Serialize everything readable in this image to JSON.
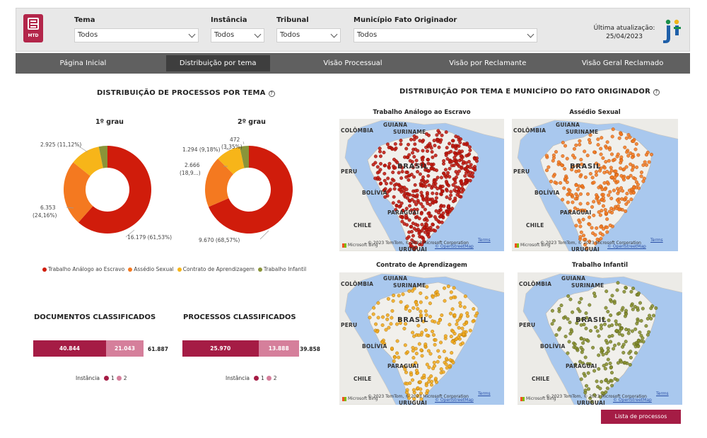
{
  "header": {
    "logo_text": "MTD",
    "filters": [
      {
        "label": "Tema",
        "value": "Todos"
      },
      {
        "label": "Instância",
        "value": "Todos"
      },
      {
        "label": "Tribunal",
        "value": "Todos"
      },
      {
        "label": "Município Fato Originador",
        "value": "Todos"
      }
    ],
    "update_label": "Última atualização:",
    "update_date": "25/04/2023"
  },
  "nav": {
    "tabs": [
      {
        "label": "Página Inicial",
        "active": false
      },
      {
        "label": "Distribuição por tema",
        "active": true
      },
      {
        "label": "Visão Processual",
        "active": false
      },
      {
        "label": "Visão por Reclamante",
        "active": false
      },
      {
        "label": "Visão Geral Reclamado",
        "active": false
      }
    ]
  },
  "left": {
    "title": "DISTRIBUIÇÃO DE PROCESSOS POR TEMA",
    "help_icon": "?",
    "donut1": {
      "title": "1º grau",
      "labels": [
        "16.179 (61,53%)",
        "6.353",
        "(24,16%)",
        "2.925 (11,12%)"
      ]
    },
    "donut2": {
      "title": "2º grau",
      "labels": [
        "9.670 (68,57%)",
        "2.666",
        "(18,9...)",
        "1.294 (9,18%)",
        "472",
        "(3,35%)"
      ]
    },
    "legend": [
      {
        "label": "Trabalho Análogo ao Escravo",
        "color": "#d01c0b"
      },
      {
        "label": "Assédio Sexual",
        "color": "#f47920"
      },
      {
        "label": "Contrato de Aprendizagem",
        "color": "#f7b519"
      },
      {
        "label": "Trabalho Infantil",
        "color": "#8a9439"
      }
    ]
  },
  "chart_data": [
    {
      "type": "pie",
      "title": "1º grau",
      "categories": [
        "Trabalho Análogo ao Escravo",
        "Assédio Sexual",
        "Contrato de Aprendizagem",
        "Trabalho Infantil"
      ],
      "values": [
        16179,
        6353,
        2925,
        836
      ],
      "colors": [
        "#d01c0b",
        "#f47920",
        "#f7b519",
        "#8a9439"
      ]
    },
    {
      "type": "pie",
      "title": "2º grau",
      "categories": [
        "Trabalho Análogo ao Escravo",
        "Assédio Sexual",
        "Contrato de Aprendizagem",
        "Trabalho Infantil"
      ],
      "values": [
        9670,
        2666,
        1294,
        472
      ],
      "colors": [
        "#d01c0b",
        "#f47920",
        "#f7b519",
        "#8a9439"
      ]
    },
    {
      "type": "bar",
      "title": "DOCUMENTOS CLASSIFICADOS",
      "categories": [
        "1",
        "2"
      ],
      "values": [
        40844,
        21043
      ],
      "total": "61.887",
      "labels": [
        "40.844",
        "21.043"
      ],
      "colors": [
        "#a51c45",
        "#d57f9b"
      ]
    },
    {
      "type": "bar",
      "title": "PROCESSOS CLASSIFICADOS",
      "categories": [
        "1",
        "2"
      ],
      "values": [
        25970,
        13888
      ],
      "total": "39.858",
      "labels": [
        "25.970",
        "13.888"
      ],
      "colors": [
        "#a51c45",
        "#d57f9b"
      ]
    }
  ],
  "kpis": {
    "instancia_label": "Instância",
    "inst1": "1",
    "inst2": "2"
  },
  "right": {
    "title": "DISTRIBUIÇÃO POR TEMA E MUNICÍPIO DO FATO ORIGINADOR",
    "help_icon": "?",
    "maps": [
      {
        "title": "Trabalho Análogo ao Escravo",
        "color": "#c0150c",
        "stroke": "#7a0c06"
      },
      {
        "title": "Assédio Sexual",
        "color": "#f47920",
        "stroke": "#a84d0c"
      },
      {
        "title": "Contrato de Aprendizagem",
        "color": "#f2a81a",
        "stroke": "#a06c08"
      },
      {
        "title": "Trabalho Infantil",
        "color": "#858d2c",
        "stroke": "#4d5316"
      }
    ],
    "map_labels": {
      "colombia": "COLÔMBIA",
      "guiana": "GUIANA",
      "suriname": "SURINAME",
      "brasil": "BRASIL",
      "peru": "PERU",
      "bolivia": "BOLÍVIA",
      "paraguai": "PARAGUAI",
      "chile": "CHILE",
      "uruguai": "URUGUAI",
      "copyright": "© 2023 TomTom, © 2023 Microsoft Corporation",
      "osm": "© OpenStreetMap",
      "terms": "Terms",
      "bing": "Microsoft Bing"
    },
    "button_label": "Lista de processos"
  }
}
